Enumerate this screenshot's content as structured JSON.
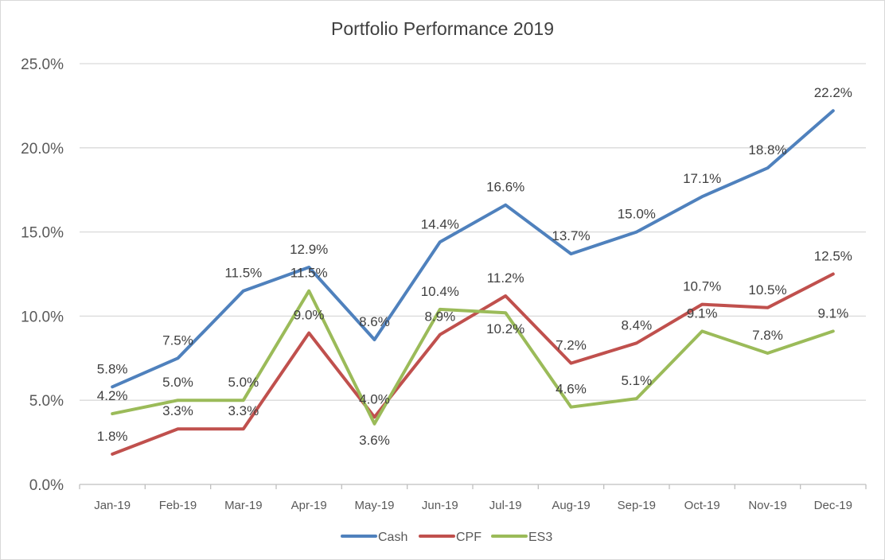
{
  "chart_data": {
    "type": "line",
    "title": "Portfolio Performance 2019",
    "xlabel": "",
    "ylabel": "",
    "categories": [
      "Jan-19",
      "Feb-19",
      "Mar-19",
      "Apr-19",
      "May-19",
      "Jun-19",
      "Jul-19",
      "Aug-19",
      "Sep-19",
      "Oct-19",
      "Nov-19",
      "Dec-19"
    ],
    "ylim": [
      0,
      25
    ],
    "yticks": [
      0,
      5,
      10,
      15,
      20,
      25
    ],
    "ytick_labels": [
      "0.0%",
      "5.0%",
      "10.0%",
      "15.0%",
      "20.0%",
      "25.0%"
    ],
    "grid": true,
    "legend_position": "bottom",
    "data_labels": true,
    "series": [
      {
        "name": "Cash",
        "color": "#4f81bd",
        "values": [
          5.8,
          7.5,
          11.5,
          12.9,
          8.6,
          14.4,
          16.6,
          13.7,
          15.0,
          17.1,
          18.8,
          22.2
        ]
      },
      {
        "name": "CPF",
        "color": "#c0504d",
        "values": [
          1.8,
          3.3,
          3.3,
          9.0,
          4.0,
          8.9,
          11.2,
          7.2,
          8.4,
          10.7,
          10.5,
          12.5
        ]
      },
      {
        "name": "ES3",
        "color": "#9bbb59",
        "values": [
          4.2,
          5.0,
          5.0,
          11.5,
          3.6,
          10.4,
          10.2,
          4.6,
          5.1,
          9.1,
          7.8,
          9.1
        ]
      }
    ]
  }
}
